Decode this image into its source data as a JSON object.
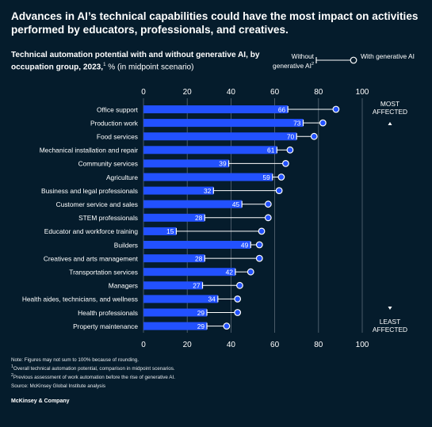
{
  "headline": "Advances in AI’s technical capabilities could have the most impact on activities performed by educators, professionals, and creatives.",
  "subtitle_bold": "Technical automation potential with and without generative AI, by occupation group, 2023,",
  "subtitle_sup": "1",
  "subtitle_rest": " % (in midpoint scenario)",
  "legend": {
    "without": "Without generative AI",
    "without_sup": "2",
    "with": "With generative AI"
  },
  "notes": [
    "Note: Figures may not sum to 100% because of rounding.",
    "Overall technical automation potential, comparison in midpoint scenarios.",
    "Previous assessment of work automation before the rise of generative AI.",
    "Source: McKinsey Global Institute analysis"
  ],
  "note_sups": [
    "",
    "1",
    "2",
    ""
  ],
  "brand": "McKinsey & Company",
  "chart_data": {
    "type": "bar",
    "categories": [
      "Office support",
      "Production work",
      "Food services",
      "Mechanical installation and repair",
      "Community services",
      "Agriculture",
      "Business and legal professionals",
      "Customer service and sales",
      "STEM professionals",
      "Educator and workforce training",
      "Builders",
      "Creatives and arts management",
      "Transportation services",
      "Managers",
      "Health aides, technicians, and wellness",
      "Health professionals",
      "Property maintenance"
    ],
    "series": [
      {
        "name": "Without generative AI",
        "values": [
          66,
          73,
          70,
          61,
          39,
          59,
          32,
          45,
          28,
          15,
          49,
          28,
          42,
          27,
          34,
          29,
          29
        ]
      },
      {
        "name": "With generative AI",
        "values": [
          88,
          82,
          78,
          67,
          65,
          63,
          62,
          57,
          57,
          54,
          53,
          53,
          49,
          44,
          43,
          43,
          38
        ]
      }
    ],
    "x_ticks": [
      "0",
      "20",
      "40",
      "60",
      "80",
      "100"
    ],
    "xlim": [
      0,
      100
    ],
    "top_label": [
      "MOST",
      "AFFECTED"
    ],
    "bottom_label": [
      "LEAST",
      "AFFECTED"
    ],
    "colors": {
      "bar": "#2251ff",
      "background": "#051c2c",
      "line": "#ffffff",
      "grid": "#5b6b78"
    }
  }
}
